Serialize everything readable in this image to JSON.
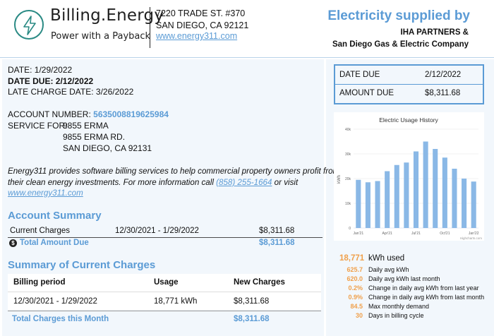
{
  "header": {
    "brand_name": "Billing.Energy",
    "tagline": "Power with a Payback",
    "address_line1": "7220 TRADE ST. #370",
    "address_line2": "SAN DIEGO, CA 92121",
    "website": "www.energy311.com",
    "supplied_title": "Electricity supplied by",
    "supplier_line1": "IHA PARTNERS &",
    "supplier_line2": "San Diego Gas & Electric Company",
    "logo_icon": "lightning-bolt-icon",
    "accent_color": "#5b9bd5",
    "logo_color": "#2a8a84"
  },
  "dates": {
    "date": "DATE: 1/29/2022",
    "date_due": "DATE DUE: 2/12/2022",
    "late_charge": "LATE CHARGE DATE: 3/26/2022"
  },
  "account": {
    "number_label": "ACCOUNT NUMBER:",
    "number": "5635008819625984",
    "service_label": "SERVICE FOR:",
    "service_line1": "9855 ERMA",
    "service_line2": "9855 ERMA RD.",
    "service_line3": "SAN DIEGO, CA 92131"
  },
  "info": {
    "text_line1": "Energy311 provides software billing services to help commercial property owners profit from",
    "text_line2_a": "their clean energy investments. For more information call",
    "phone": "(858) 255-1664",
    "text_line2_b": "or visit",
    "website": "www.energy311.com"
  },
  "account_summary": {
    "title": "Account Summary",
    "current_label": "Current Charges",
    "period": "12/30/2021 - 1/29/2022",
    "current_amount": "$8,311.68",
    "total_label": "Total Amount Due",
    "total_amount": "$8,311.68",
    "total_icon": "dollar-coin-icon"
  },
  "charges_summary": {
    "title": "Summary of Current Charges",
    "headers": [
      "Billing period",
      "Usage",
      "New Charges"
    ],
    "rows": [
      [
        "12/30/2021 - 1/29/2022",
        "18,771 kWh",
        "$8,311.68"
      ]
    ],
    "total_label": "Total Charges this Month",
    "total_amount": "$8,311.68"
  },
  "due_box": {
    "date_due_label": "DATE DUE",
    "date_due_value": "2/12/2022",
    "amount_due_label": "AMOUNT DUE",
    "amount_due_value": "$8,311.68"
  },
  "chart_data": {
    "type": "bar",
    "title": "Electric Usage History",
    "ylabel": "kWh",
    "xlabel": "",
    "ylim": [
      0,
      40000
    ],
    "y_ticks": [
      "0",
      "10k",
      "20k",
      "30k",
      "40k"
    ],
    "x_tick_labels": [
      "Jan'21",
      "Apr'21",
      "Jul'21",
      "Oct'21",
      "Jan'22"
    ],
    "categories": [
      "Jan'21",
      "Feb'21",
      "Mar'21",
      "Apr'21",
      "May'21",
      "Jun'21",
      "Jul'21",
      "Aug'21",
      "Sep'21",
      "Oct'21",
      "Nov'21",
      "Dec'21",
      "Jan'22"
    ],
    "values": [
      19500,
      18500,
      19000,
      23000,
      25500,
      26500,
      31000,
      35000,
      32000,
      28500,
      24000,
      20000,
      18800
    ],
    "grid": true,
    "bar_color": "#8ab8e6",
    "credit": "Highcharts.com"
  },
  "usage": {
    "total_kwh": "18,771",
    "total_label": "kWh used",
    "stats": [
      {
        "value": "625.7",
        "label": "Daily avg kWh"
      },
      {
        "value": "620.0",
        "label": "Daily avg kWh last month"
      },
      {
        "value": "0.2%",
        "label": "Change in daily avg kWh from last year"
      },
      {
        "value": "0.9%",
        "label": "Change in daily avg kWh from last month"
      },
      {
        "value": "84.5",
        "label": "Max monthly demand"
      },
      {
        "value": "30",
        "label": "Days in billing cycle"
      }
    ]
  }
}
